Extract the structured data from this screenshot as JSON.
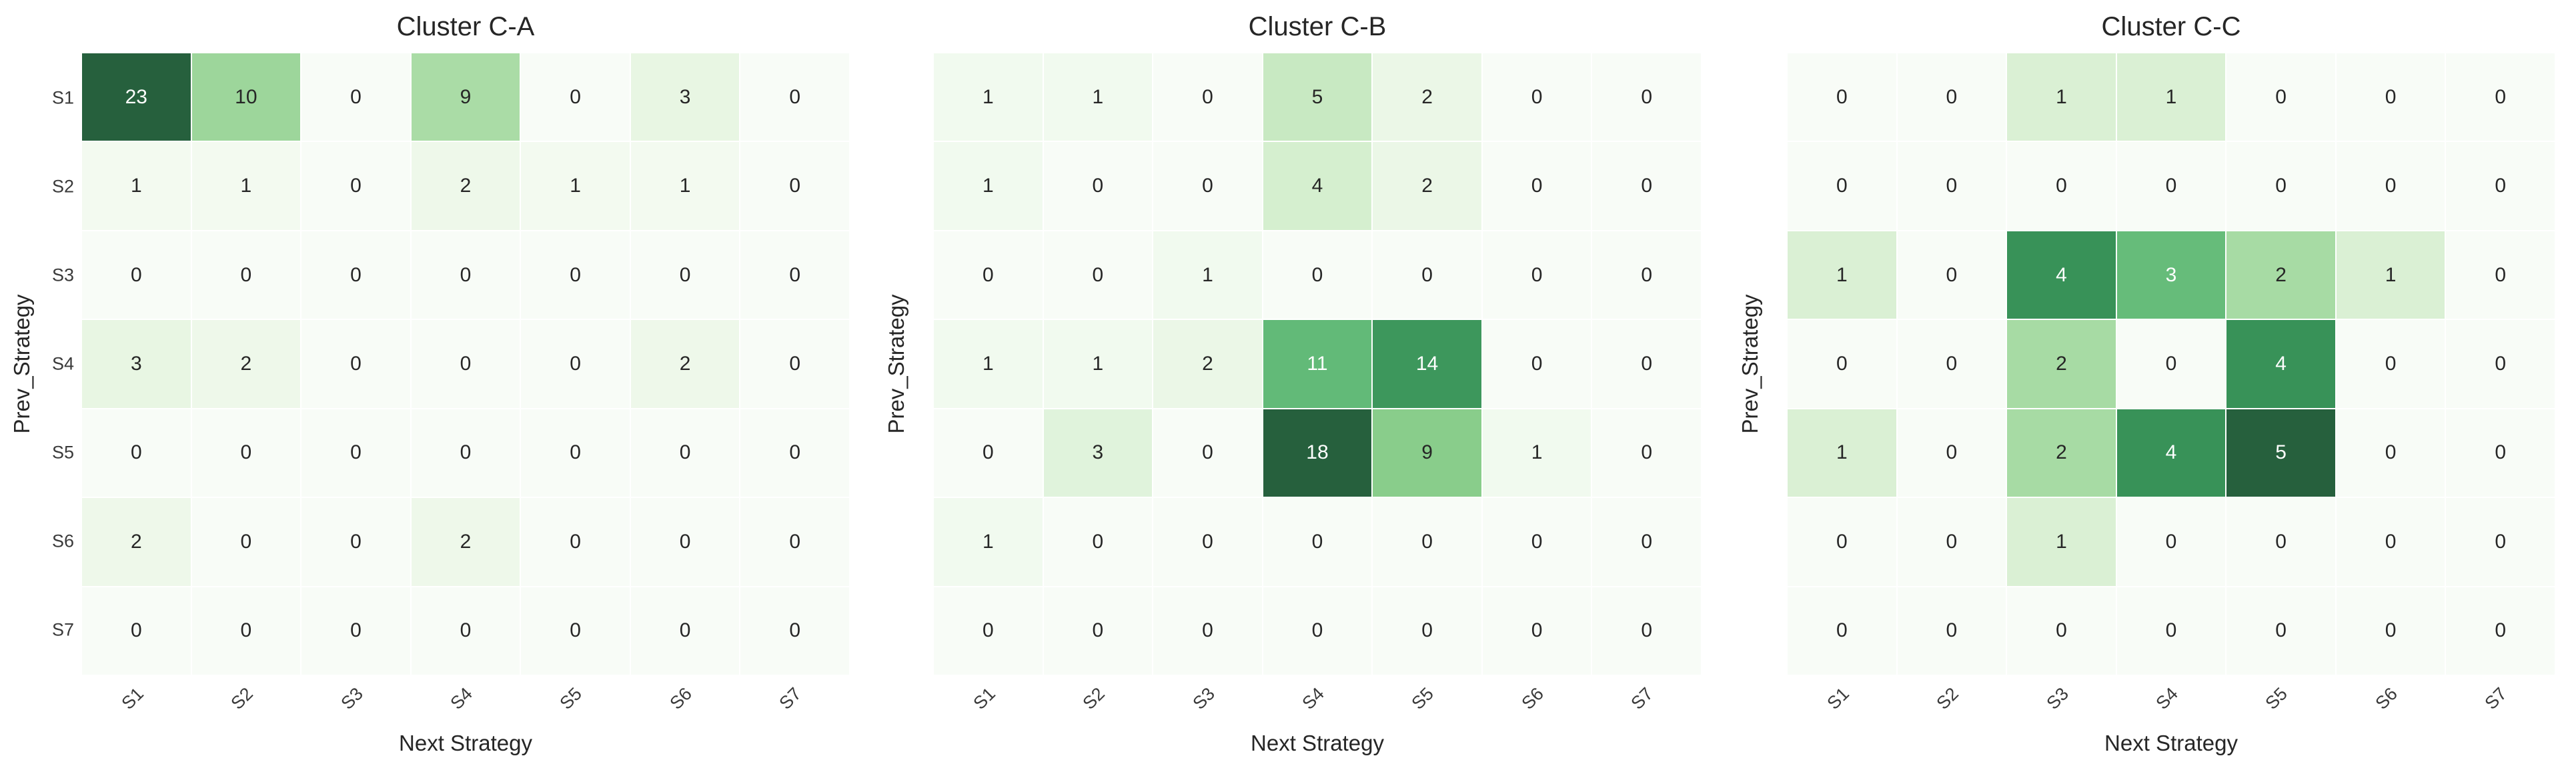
{
  "figure": {
    "background": "#ffffff",
    "num_charts": 3
  },
  "colors": {
    "colormap_name": "Greens",
    "greens_stops": [
      "#f7fcf5",
      "#e5f5e0",
      "#c7e9c0",
      "#a1d99b",
      "#74c476",
      "#41ab5d",
      "#238b45",
      "#006d2c",
      "#00441b"
    ],
    "white_blend": 0.85,
    "annotation_dark": "#262626",
    "annotation_light": "#ffffff",
    "tick_text": "#3a3a3a",
    "background": "#ffffff"
  },
  "chart_data": [
    {
      "type": "heatmap",
      "title": "Cluster C-A",
      "xlabel": "Next Strategy",
      "ylabel": "Prev_Strategy",
      "x_labels": [
        "S1",
        "S2",
        "S3",
        "S4",
        "S5",
        "S6",
        "S7"
      ],
      "y_labels": [
        "S1",
        "S2",
        "S3",
        "S4",
        "S5",
        "S6",
        "S7"
      ],
      "show_y_ticklabels": true,
      "x_tick_rotation_deg": 45,
      "annotated": true,
      "grid": false,
      "legend": "none",
      "vmin": 0,
      "vmax": 23,
      "values": [
        [
          23,
          10,
          0,
          9,
          0,
          3,
          0
        ],
        [
          1,
          1,
          0,
          2,
          1,
          1,
          0
        ],
        [
          0,
          0,
          0,
          0,
          0,
          0,
          0
        ],
        [
          3,
          2,
          0,
          0,
          0,
          2,
          0
        ],
        [
          0,
          0,
          0,
          0,
          0,
          0,
          0
        ],
        [
          2,
          0,
          0,
          2,
          0,
          0,
          0
        ],
        [
          0,
          0,
          0,
          0,
          0,
          0,
          0
        ]
      ]
    },
    {
      "type": "heatmap",
      "title": "Cluster C-B",
      "xlabel": "Next Strategy",
      "ylabel": "Prev_Strategy",
      "x_labels": [
        "S1",
        "S2",
        "S3",
        "S4",
        "S5",
        "S6",
        "S7"
      ],
      "y_labels": [
        "S1",
        "S2",
        "S3",
        "S4",
        "S5",
        "S6",
        "S7"
      ],
      "show_y_ticklabels": false,
      "x_tick_rotation_deg": 45,
      "annotated": true,
      "grid": false,
      "legend": "none",
      "vmin": 0,
      "vmax": 18,
      "values": [
        [
          1,
          1,
          0,
          5,
          2,
          0,
          0
        ],
        [
          1,
          0,
          0,
          4,
          2,
          0,
          0
        ],
        [
          0,
          0,
          1,
          0,
          0,
          0,
          0
        ],
        [
          1,
          1,
          2,
          11,
          14,
          0,
          0
        ],
        [
          0,
          3,
          0,
          18,
          9,
          1,
          0
        ],
        [
          1,
          0,
          0,
          0,
          0,
          0,
          0
        ],
        [
          0,
          0,
          0,
          0,
          0,
          0,
          0
        ]
      ]
    },
    {
      "type": "heatmap",
      "title": "Cluster C-C",
      "xlabel": "Next Strategy",
      "ylabel": "Prev_Strategy",
      "x_labels": [
        "S1",
        "S2",
        "S3",
        "S4",
        "S5",
        "S6",
        "S7"
      ],
      "y_labels": [
        "S1",
        "S2",
        "S3",
        "S4",
        "S5",
        "S6",
        "S7"
      ],
      "show_y_ticklabels": false,
      "x_tick_rotation_deg": 45,
      "annotated": true,
      "grid": false,
      "legend": "none",
      "vmin": 0,
      "vmax": 5,
      "values": [
        [
          0,
          0,
          1,
          1,
          0,
          0,
          0
        ],
        [
          0,
          0,
          0,
          0,
          0,
          0,
          0
        ],
        [
          1,
          0,
          4,
          3,
          2,
          1,
          0
        ],
        [
          0,
          0,
          2,
          0,
          4,
          0,
          0
        ],
        [
          1,
          0,
          2,
          4,
          5,
          0,
          0
        ],
        [
          0,
          0,
          1,
          0,
          0,
          0,
          0
        ],
        [
          0,
          0,
          0,
          0,
          0,
          0,
          0
        ]
      ]
    }
  ]
}
